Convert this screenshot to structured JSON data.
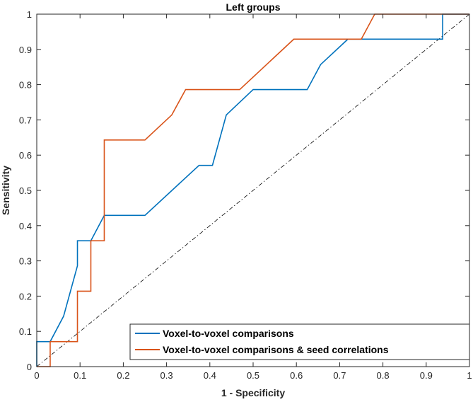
{
  "chart_data": {
    "type": "line",
    "title": "Left groups",
    "xlabel": "1 - Specificity",
    "ylabel": "Sensitivity",
    "xlim": [
      0,
      1
    ],
    "ylim": [
      0,
      1
    ],
    "xticks": [
      0,
      0.1,
      0.2,
      0.3,
      0.4,
      0.5,
      0.6,
      0.7,
      0.8,
      0.9,
      1
    ],
    "yticks": [
      0,
      0.1,
      0.2,
      0.3,
      0.4,
      0.5,
      0.6,
      0.7,
      0.8,
      0.9,
      1
    ],
    "xtick_labels": [
      "0",
      "0.1",
      "0.2",
      "0.3",
      "0.4",
      "0.5",
      "0.6",
      "0.7",
      "0.8",
      "0.9",
      "1"
    ],
    "ytick_labels": [
      "0",
      "0.1",
      "0.2",
      "0.3",
      "0.4",
      "0.5",
      "0.6",
      "0.7",
      "0.8",
      "0.9",
      "1"
    ],
    "grid": false,
    "legend_position": "bottom-right",
    "series": [
      {
        "name": "Voxel-to-voxel comparisons",
        "color": "#0072BD",
        "x": [
          0,
          0,
          0.031,
          0.062,
          0.094,
          0.094,
          0.125,
          0.156,
          0.25,
          0.375,
          0.406,
          0.438,
          0.5,
          0.625,
          0.656,
          0.719,
          0.75,
          0.938,
          0.938,
          1
        ],
        "y": [
          0,
          0.071,
          0.071,
          0.143,
          0.286,
          0.357,
          0.357,
          0.429,
          0.429,
          0.571,
          0.571,
          0.714,
          0.786,
          0.786,
          0.857,
          0.929,
          0.929,
          0.929,
          1,
          1
        ]
      },
      {
        "name": "Voxel-to-voxel comparisons & seed correlations",
        "color": "#D95319",
        "x": [
          0,
          0.031,
          0.031,
          0.094,
          0.094,
          0.125,
          0.125,
          0.156,
          0.156,
          0.25,
          0.312,
          0.344,
          0.469,
          0.594,
          0.75,
          0.781,
          1
        ],
        "y": [
          0,
          0,
          0.071,
          0.071,
          0.214,
          0.214,
          0.357,
          0.357,
          0.643,
          0.643,
          0.714,
          0.786,
          0.786,
          0.929,
          0.929,
          1,
          1
        ]
      },
      {
        "name": "Reference diagonal",
        "color": "#000000",
        "x": [
          0,
          1
        ],
        "y": [
          0,
          1
        ]
      }
    ]
  }
}
